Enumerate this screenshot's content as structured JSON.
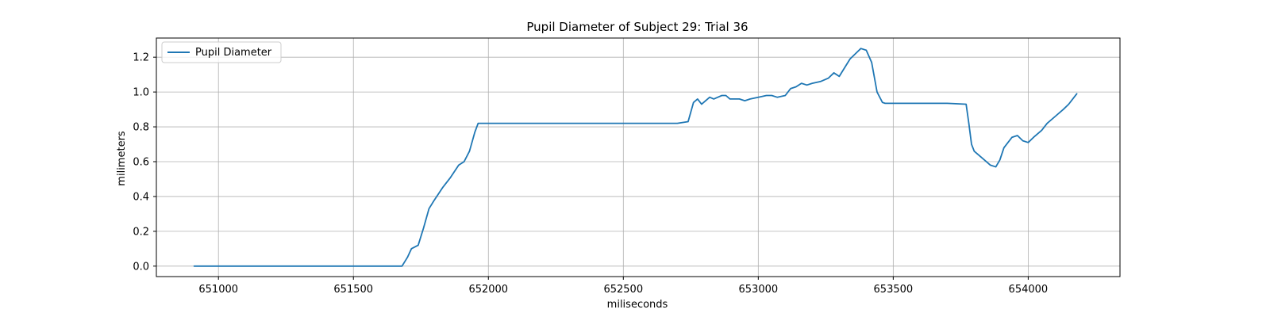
{
  "chart_data": {
    "type": "line",
    "title": "Pupil Diameter of Subject 29: Trial 36",
    "xlabel": "miliseconds",
    "ylabel": "milimeters",
    "xlim": [
      650770,
      654340
    ],
    "ylim": [
      -0.06,
      1.31
    ],
    "xticks": [
      651000,
      651500,
      652000,
      652500,
      653000,
      653500,
      654000
    ],
    "yticks": [
      0.0,
      0.2,
      0.4,
      0.6,
      0.8,
      1.0,
      1.2
    ],
    "xtick_labels": [
      "651000",
      "651500",
      "652000",
      "652500",
      "653000",
      "653500",
      "654000"
    ],
    "ytick_labels": [
      "0.0",
      "0.2",
      "0.4",
      "0.6",
      "0.8",
      "1.0",
      "1.2"
    ],
    "grid": true,
    "legend_position": "upper-left",
    "series": [
      {
        "name": "Pupil Diameter",
        "color": "#1f77b4",
        "x": [
          650910,
          651200,
          651500,
          651680,
          651700,
          651715,
          651740,
          651760,
          651780,
          651800,
          651830,
          651860,
          651890,
          651910,
          651930,
          651950,
          651962,
          651975,
          652100,
          652300,
          652500,
          652700,
          652740,
          652760,
          652775,
          652790,
          652805,
          652820,
          652835,
          652850,
          652865,
          652880,
          652895,
          652910,
          652930,
          652950,
          652970,
          653000,
          653030,
          653050,
          653070,
          653100,
          653120,
          653140,
          653160,
          653180,
          653200,
          653230,
          653260,
          653280,
          653300,
          653320,
          653340,
          653360,
          653380,
          653400,
          653420,
          653440,
          653460,
          653470,
          653480,
          653500,
          653600,
          653700,
          653770,
          653780,
          653790,
          653800,
          653830,
          653860,
          653880,
          653895,
          653910,
          653925,
          653940,
          653960,
          653980,
          654000,
          654020,
          654050,
          654070,
          654100,
          654130,
          654150,
          654180
        ],
        "values": [
          0.0,
          0.0,
          0.0,
          0.0,
          0.05,
          0.1,
          0.12,
          0.22,
          0.33,
          0.38,
          0.45,
          0.51,
          0.58,
          0.6,
          0.66,
          0.77,
          0.82,
          0.82,
          0.82,
          0.82,
          0.82,
          0.82,
          0.83,
          0.94,
          0.96,
          0.93,
          0.95,
          0.97,
          0.96,
          0.97,
          0.98,
          0.98,
          0.96,
          0.96,
          0.96,
          0.95,
          0.96,
          0.97,
          0.98,
          0.98,
          0.97,
          0.98,
          1.02,
          1.03,
          1.05,
          1.04,
          1.05,
          1.06,
          1.08,
          1.11,
          1.09,
          1.14,
          1.19,
          1.22,
          1.25,
          1.24,
          1.17,
          1.0,
          0.94,
          0.935,
          0.935,
          0.935,
          0.935,
          0.935,
          0.93,
          0.82,
          0.7,
          0.66,
          0.62,
          0.58,
          0.57,
          0.61,
          0.68,
          0.71,
          0.74,
          0.75,
          0.72,
          0.71,
          0.74,
          0.78,
          0.82,
          0.86,
          0.9,
          0.93,
          0.99
        ]
      }
    ]
  }
}
